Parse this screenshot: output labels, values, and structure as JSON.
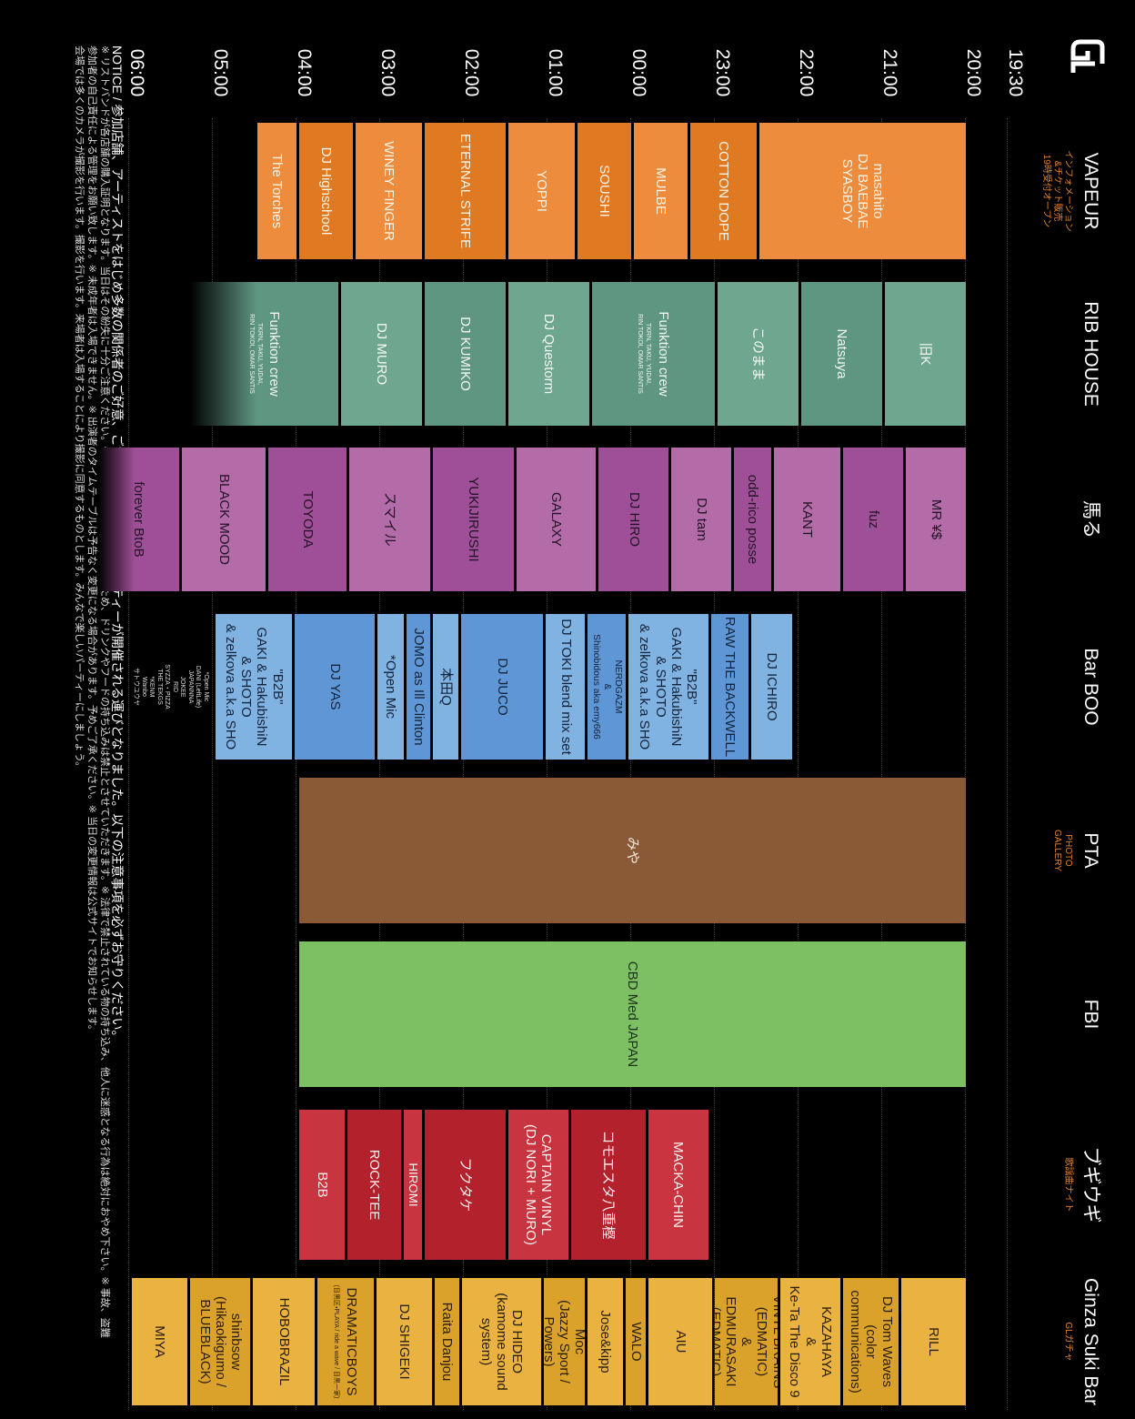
{
  "times": [
    {
      "value": 19.5,
      "label": "19:30"
    },
    {
      "value": 20,
      "label": "20:00"
    },
    {
      "value": 21,
      "label": "21:00"
    },
    {
      "value": 22,
      "label": "22:00"
    },
    {
      "value": 23,
      "label": "23:00"
    },
    {
      "value": 24,
      "label": "00:00"
    },
    {
      "value": 25,
      "label": "01:00"
    },
    {
      "value": 26,
      "label": "02:00"
    },
    {
      "value": 27,
      "label": "03:00"
    },
    {
      "value": 28,
      "label": "04:00"
    },
    {
      "value": 29,
      "label": "05:00"
    },
    {
      "value": 30,
      "label": "06:00"
    }
  ],
  "venues": [
    {
      "name": "VAPEUR",
      "subtitle": "インフォメーション\n&チケット販売\n19時受付オープン",
      "color": "#ee8c3e",
      "alt_color": "#e07a22",
      "text_color": "#fff3e6",
      "slots": [
        {
          "label": "masahito\nDJ BAEBAE\nSYASBOY",
          "start": 20,
          "end": 22.5
        },
        {
          "label": "COTTON DOPE",
          "start": 22.5,
          "end": 23.33
        },
        {
          "label": "MULBE",
          "start": 23.33,
          "end": 24
        },
        {
          "label": "SOUSHI",
          "start": 24,
          "end": 24.67
        },
        {
          "label": "YOPPI",
          "start": 24.67,
          "end": 25.5
        },
        {
          "label": "ETERNAL STRIFE",
          "start": 25.5,
          "end": 26.5
        },
        {
          "label": "WINEY FINGER",
          "start": 26.5,
          "end": 27.33
        },
        {
          "label": "DJ Highschool",
          "start": 27.33,
          "end": 28
        },
        {
          "label": "The Torches",
          "start": 28,
          "end": 28.5
        }
      ]
    },
    {
      "name": "RIB HOUSE",
      "color": "#6ea690",
      "alt_color": "#5f9682",
      "text_color": "#f2f7f4",
      "slots": [
        {
          "label": "旧K",
          "start": 20,
          "end": 21
        },
        {
          "label": "Natsuya",
          "start": 21,
          "end": 22
        },
        {
          "label": "このまま",
          "start": 22,
          "end": 23
        },
        {
          "label": "Funktion crew",
          "sub": "TKRN, TAKU, YUDAI,\nRIN TOKOI, OMAR SANTIS",
          "start": 23,
          "end": 24.5
        },
        {
          "label": "DJ Questorm",
          "start": 24.5,
          "end": 25.5
        },
        {
          "label": "DJ KUMIKO",
          "start": 25.5,
          "end": 26.5
        },
        {
          "label": "DJ MURO",
          "start": 26.5,
          "end": 27.5
        },
        {
          "label": "Funktion crew",
          "sub": "TKRN, TAKU, YUDAI,\nRIN TOKOI, OMAR SANTIS",
          "start": 27.5,
          "end": 29.3,
          "fade": true
        }
      ]
    },
    {
      "name": "馬る",
      "color": "#b46ca9",
      "alt_color": "#9f4f97",
      "text_color": "#231326",
      "slots": [
        {
          "label": "MR ¥$",
          "start": 20,
          "end": 20.75
        },
        {
          "label": "fuz",
          "start": 20.75,
          "end": 21.5
        },
        {
          "label": "KANT",
          "start": 21.5,
          "end": 22.33
        },
        {
          "label": "odd-rico posse",
          "start": 22.33,
          "end": 22.8
        },
        {
          "label": "DJ tam",
          "start": 22.8,
          "end": 23.55
        },
        {
          "label": "DJ HIRO",
          "start": 23.55,
          "end": 24.42
        },
        {
          "label": "GALAXY",
          "start": 24.42,
          "end": 25.4
        },
        {
          "label": "YUKIJIRUSHI",
          "start": 25.4,
          "end": 26.4
        },
        {
          "label": "スマイル",
          "start": 26.4,
          "end": 27.4
        },
        {
          "label": "TOYODA",
          "start": 27.4,
          "end": 28.37
        },
        {
          "label": "BLACK MOOD",
          "start": 28.37,
          "end": 29.4
        },
        {
          "label": "forever BtoB",
          "start": 29.4,
          "end": 30.4,
          "fade": true
        }
      ]
    },
    {
      "name": "Bar BOO",
      "color": "#80b2e2",
      "alt_color": "#5e96d6",
      "text_color": "#13243a",
      "slots": [
        {
          "label": "DJ ICHIRO",
          "start": 22.08,
          "end": 22.6
        },
        {
          "label": "RAW THE BACKWELL",
          "start": 22.6,
          "end": 23.08
        },
        {
          "label": "\"B2B\"\nGAKI & HakubishiN\n& SHOTO\n& zelkova a.k.a SHO",
          "start": 23.08,
          "end": 24.07
        },
        {
          "label": "NERDGAZM\n&\nShinobidous aka emy666",
          "start": 24.07,
          "end": 24.55
        },
        {
          "label": "DJ TOKI blend mix set",
          "start": 24.55,
          "end": 25.05
        },
        {
          "label": "DJ JUCO",
          "start": 25.05,
          "end": 26.07
        },
        {
          "label": "本田Q",
          "start": 26.07,
          "end": 26.4
        },
        {
          "label": "JOMO as Ill Clinton",
          "start": 26.4,
          "end": 26.72
        },
        {
          "label": "*Open Mic",
          "start": 26.72,
          "end": 27.07
        },
        {
          "label": "DJ YAS",
          "start": 27.07,
          "end": 28.05
        },
        {
          "label": "\"B2B\"\nGAKI & HakubishiN\n& SHOTO\n& zelkova a.k.a SHO",
          "start": 28.05,
          "end": 29
        }
      ]
    },
    {
      "name": "PTA",
      "subtitle": "PHOTO\nGALLERY",
      "color": "#8a5a36",
      "alt_color": "#8a5a36",
      "text_color": "#f4e9df",
      "slots": [
        {
          "label": "みや",
          "start": 20,
          "end": 28
        }
      ]
    },
    {
      "name": "FBI",
      "color": "#7cc063",
      "alt_color": "#7cc063",
      "text_color": "#1d3316",
      "slots": [
        {
          "label": "CBD Med JAPAN",
          "start": 20,
          "end": 28
        }
      ]
    },
    {
      "name": "ブギウギ",
      "subtitle": "歌謡曲ナイト",
      "color": "#c8343f",
      "alt_color": "#b3212d",
      "text_color": "#fff0f0",
      "slots": [
        {
          "label": "MACKA-CHIN",
          "start": 23.08,
          "end": 23.83
        },
        {
          "label": "コモエスタ八重樫",
          "start": 23.83,
          "end": 24.75
        },
        {
          "label": "CAPTAIN VINYL\n(DJ NORI + MURO)",
          "start": 24.75,
          "end": 25.5
        },
        {
          "label": "フクタケ",
          "start": 25.5,
          "end": 26.5
        },
        {
          "label": "HIROMI",
          "start": 26.5,
          "end": 26.75
        },
        {
          "label": "ROCK-TEE",
          "start": 26.75,
          "end": 27.42
        },
        {
          "label": "B2B",
          "start": 27.42,
          "end": 28
        }
      ]
    },
    {
      "name": "Ginza Suki Bar",
      "subtitle": "GLガチャ",
      "color": "#e9b241",
      "alt_color": "#dba22b",
      "text_color": "#2a1e08",
      "slots": [
        {
          "label": "RILL",
          "start": 20,
          "end": 20.8
        },
        {
          "label": "DJ Tom Waves\n(color communications)",
          "start": 20.8,
          "end": 21.5
        },
        {
          "label": "KAZAHAYA\n&\nKe-Ta The Disco 9",
          "start": 21.5,
          "end": 22.25
        },
        {
          "label": "VINYL BRAINS (EDMATIC)\n&\nEDMURASAKI (EDMATIC)",
          "start": 22.25,
          "end": 23.03
        },
        {
          "label": "AIU",
          "start": 23.03,
          "end": 23.83
        },
        {
          "label": "WALO",
          "start": 23.83,
          "end": 24.1
        },
        {
          "label": "Jose&kipp",
          "start": 24.1,
          "end": 24.55
        },
        {
          "label": "Moc\n(Jazzy Sport / Powers)",
          "start": 24.55,
          "end": 25.08
        },
        {
          "label": "DJ HIDEO\n(kamome sound system)",
          "start": 25.08,
          "end": 26.05
        },
        {
          "label": "Raita Danjou",
          "start": 26.05,
          "end": 26.38
        },
        {
          "label": "DJ SHIGEKI",
          "start": 26.38,
          "end": 27.08
        },
        {
          "label": "DRAMATICBOYS",
          "sub": "(目黒区・PLAYA / ride a wave / 目黒一家)",
          "start": 27.08,
          "end": 27.78
        },
        {
          "label": "HOBOBRAZIL",
          "start": 27.78,
          "end": 28.55
        },
        {
          "label": "shinbsow\n(Hikaokigumo / BLUEBLACK)",
          "start": 28.55,
          "end": 29.3
        },
        {
          "label": "MIYA",
          "start": 29.3,
          "end": 30
        }
      ]
    }
  ],
  "open_mic_list": "*Open Mic\nDANI (LeftLife)\nJAPANNNA\nJOKEE\nRID\nSYZZA・PIZZA\nTHE TEKGS\n*KENM\nWanbo\nサトウユウヤ",
  "notice": [
    "NOTICE / 参加店舗、アーティストをはじめ多数の関係者のご好意、ご協力によって今回のパーティーが開催される運びとなりました。以下の注意事項を必ずお守りください。",
    "※ リストバンドが各店舗の購入証明となります。当日はその紛失に十分ご注意ください。※ 本パーティーはゴミの削減のため、ドリンクやフードの持ち込みは禁止とさせていただきます。※ 法律で禁止されている物の持ち込み、他人に迷惑となる行為は絶対におやめ下さい。※ 事故、盗難",
    "参加者の自己責任による管理をお願い致します。※ 未成年者は入場できません。※ 出演者のタイムテーブルは予告なく変更になる場合があります。予めご了承ください。※ 当日の変更情報は公式サイトでお知らせします。",
    "会場では多くのカメラが撮影を行います。撮影を行います。来場者は入場することにより撮影に同意するものとします。みんなで楽しいパーティーにしましょう。"
  ]
}
